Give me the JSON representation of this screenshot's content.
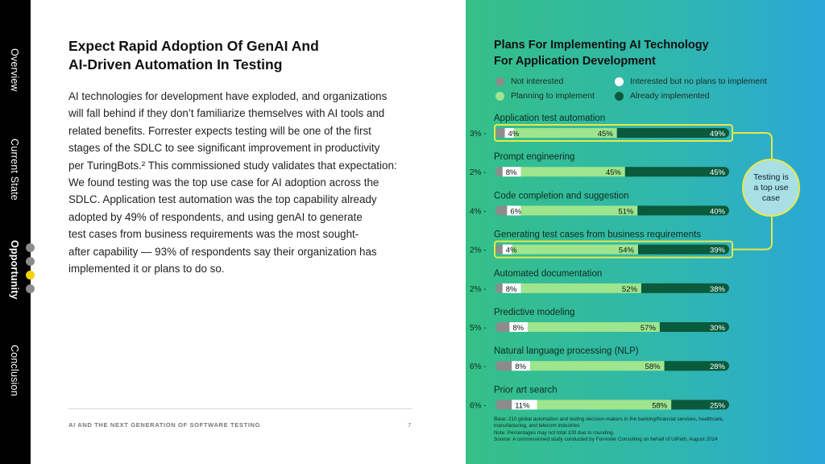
{
  "nav": {
    "items": [
      {
        "label": "Overview",
        "active": false
      },
      {
        "label": "Current State",
        "active": false
      },
      {
        "label": "Opportunity",
        "active": true
      },
      {
        "label": "Conclusion",
        "active": false
      }
    ]
  },
  "content": {
    "headline_line1": "Expect Rapid Adoption Of GenAI And",
    "headline_line2": "AI-Driven Automation In Testing",
    "body_lines": [
      "AI technologies for development have exploded, and organizations",
      "will fall behind if they don’t familiarize themselves with AI tools and",
      "related benefits. Forrester expects testing will be one of the first",
      "stages of the SDLC to see significant improvement in productivity",
      "per TuringBots.² This commissioned study validates that expectation:",
      "We found testing was the top use case for AI adoption across the",
      "SDLC. Application test automation was the top capability already",
      "adopted by 49% of respondents, and using genAI to generate",
      "test cases from business requirements was the most sought-",
      "after capability — 93% of respondents say their organization has",
      "implemented it or plans to do so."
    ],
    "footer": "AI AND THE NEXT GENERATION OF SOFTWARE TESTING",
    "page_number": "7"
  },
  "callout": {
    "line1": "Testing is",
    "line2": "a top use",
    "line3": "case"
  },
  "notes": {
    "base_line1": "Base: 210 global automation and testing decision-makers in the banking/financial services, healthcare,",
    "base_line2": "manufacturing, and telecom industries",
    "note": "Note: Percentages may not total 100 due to rounding.",
    "source": "Source: A commissioned study conducted by Forrester Consulting on behalf of UiPath, August 2024"
  },
  "colors": {
    "not_interested": "#8c8c8c",
    "interested_no_plans": "#ffffff",
    "planning": "#9ee58e",
    "implemented": "#0a5a3c",
    "highlight": "#e8e84a"
  },
  "chart_data": {
    "type": "bar",
    "orientation": "horizontal",
    "stacked": true,
    "title_line1": "Plans For Implementing AI Technology",
    "title_line2": "For Application Development",
    "legend": [
      {
        "key": "not_interested",
        "label": "Not interested"
      },
      {
        "key": "interested_no_plans",
        "label": "Interested but no plans to implement"
      },
      {
        "key": "planning",
        "label": "Planning to implement"
      },
      {
        "key": "implemented",
        "label": "Already implemented"
      }
    ],
    "categories": [
      "Application test automation",
      "Prompt engineering",
      "Code completion and suggestion",
      "Generating test cases from business requirements",
      "Automated documentation",
      "Predictive modeling",
      "Natural language processing (NLP)",
      "Prior art search"
    ],
    "series": [
      {
        "name": "Not interested",
        "values": [
          3,
          2,
          4,
          2,
          2,
          5,
          6,
          6
        ]
      },
      {
        "name": "Interested but no plans to implement",
        "values": [
          4,
          8,
          6,
          4,
          8,
          8,
          8,
          11
        ]
      },
      {
        "name": "Planning to implement",
        "values": [
          45,
          45,
          51,
          54,
          52,
          57,
          58,
          58
        ]
      },
      {
        "name": "Already implemented",
        "values": [
          49,
          45,
          40,
          39,
          38,
          30,
          28,
          25
        ]
      }
    ],
    "highlighted": [
      "Application test automation",
      "Generating test cases from business requirements"
    ],
    "unit": "%"
  }
}
